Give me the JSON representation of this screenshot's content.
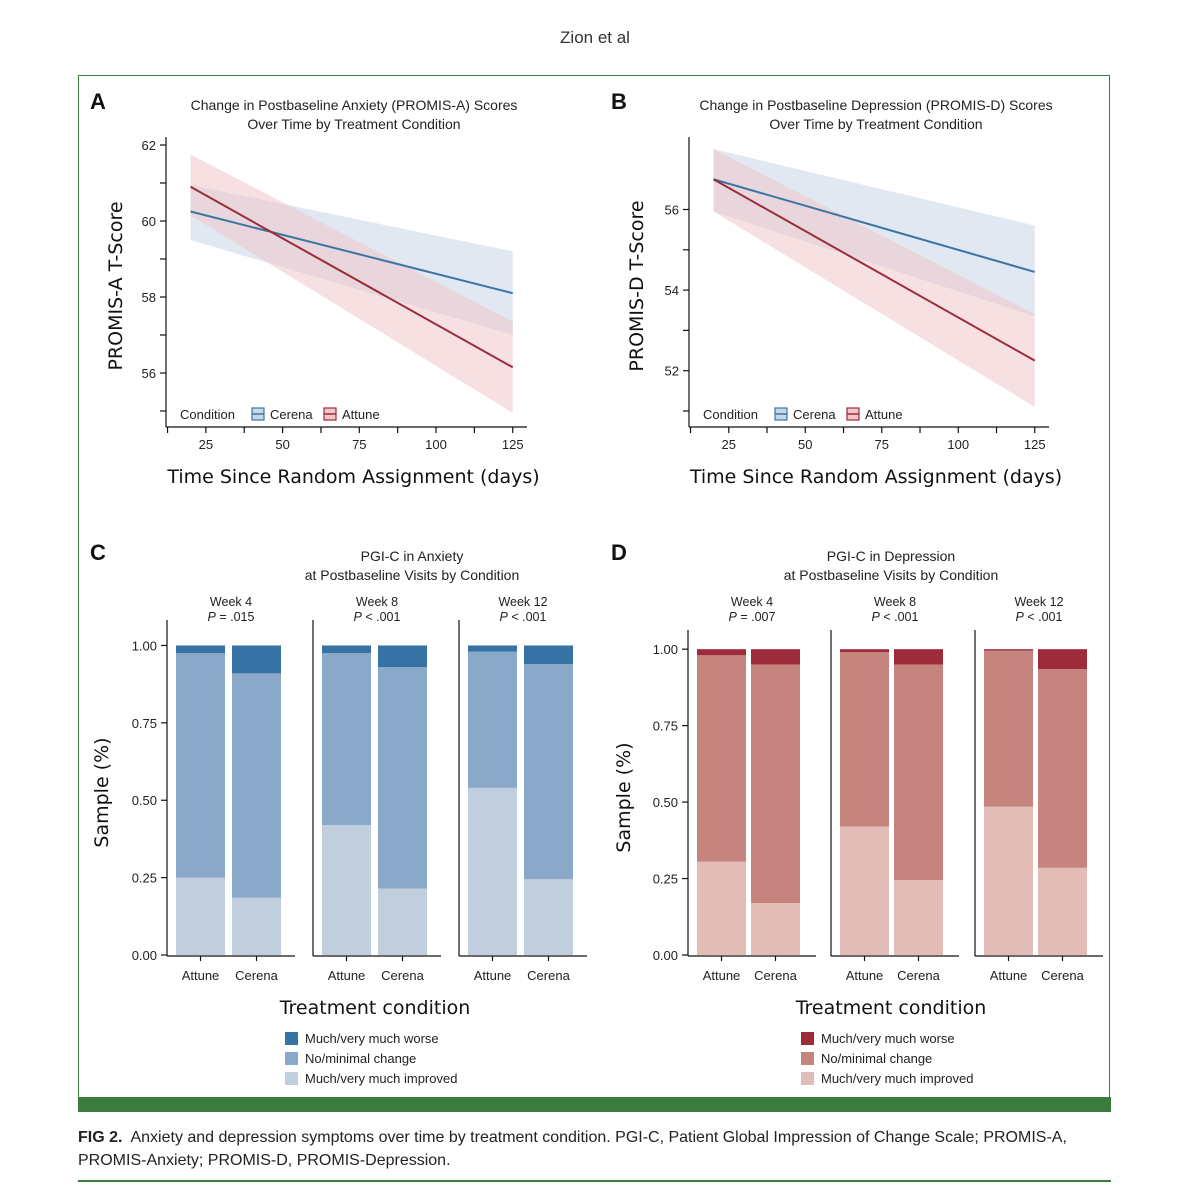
{
  "header": {
    "running_head": "Zion et al"
  },
  "caption": {
    "label": "FIG 2.",
    "text": "Anxiety and depression symptoms over time by treatment condition. PGI-C, Patient Global Impression of Change Scale; PROMIS-A, PROMIS-Anxiety; PROMIS-D, PROMIS-Depression."
  },
  "colors": {
    "cerena_line": "#3b75a6",
    "cerena_band": "#c9d6e6",
    "attune_line": "#9b2c3a",
    "attune_band": "#efc6ca",
    "blue_worse": "#3672a3",
    "blue_nochange": "#8aa8c7",
    "blue_improved": "#c1cedd",
    "red_worse": "#9e2b3a",
    "red_nochange": "#c5857e",
    "red_improved": "#e2bcb6"
  },
  "chart_data": [
    {
      "panel": "A",
      "type": "line",
      "title": [
        "Change in Postbaseline Anxiety (PROMIS-A) Scores",
        "Over Time by Treatment Condition"
      ],
      "xlabel": "Time Since Random Assignment (days)",
      "ylabel": "PROMIS-A T-Score",
      "xlim": [
        12,
        129
      ],
      "ylim": [
        55,
        62
      ],
      "xticks": [
        25,
        50,
        75,
        100,
        125
      ],
      "yticks": [
        56,
        58,
        60,
        62
      ],
      "legend_title": "Condition",
      "series": [
        {
          "name": "Cerena",
          "x": [
            20,
            125
          ],
          "y": [
            60.25,
            58.1
          ],
          "ci_low": [
            59.5,
            57.0
          ],
          "ci_high": [
            60.95,
            59.2
          ]
        },
        {
          "name": "Attune",
          "x": [
            20,
            125
          ],
          "y": [
            60.9,
            56.15
          ],
          "ci_low": [
            60.15,
            54.95
          ],
          "ci_high": [
            61.75,
            57.35
          ]
        }
      ]
    },
    {
      "panel": "B",
      "type": "line",
      "title": [
        "Change in Postbaseline Depression (PROMIS-D) Scores",
        "Over Time by Treatment Condition"
      ],
      "xlabel": "Time Since Random Assignment (days)",
      "ylabel": "PROMIS-D T-Score",
      "xlim": [
        12,
        129
      ],
      "ylim": [
        51,
        57.6
      ],
      "xticks": [
        25,
        50,
        75,
        100,
        125
      ],
      "yticks": [
        52,
        54,
        56
      ],
      "legend_title": "Condition",
      "series": [
        {
          "name": "Cerena",
          "x": [
            20,
            125
          ],
          "y": [
            56.75,
            54.45
          ],
          "ci_low": [
            55.95,
            53.35
          ],
          "ci_high": [
            57.5,
            55.6
          ]
        },
        {
          "name": "Attune",
          "x": [
            20,
            125
          ],
          "y": [
            56.75,
            52.25
          ],
          "ci_low": [
            55.95,
            51.1
          ],
          "ci_high": [
            57.5,
            53.4
          ]
        }
      ]
    },
    {
      "panel": "C",
      "type": "bar",
      "stacked": true,
      "title": [
        "PGI-C in Anxiety",
        "at Postbaseline Visits by Condition"
      ],
      "xlabel": "Treatment condition",
      "ylabel": "Sample (%)",
      "ylim": [
        0,
        1.05
      ],
      "yticks": [
        "0.00",
        "0.25",
        "0.50",
        "0.75",
        "1.00"
      ],
      "categories": [
        "Attune",
        "Cerena"
      ],
      "facets": [
        {
          "label": "Week 4",
          "p_prefix": "P",
          "p_value": " = .015",
          "improved": [
            0.25,
            0.185
          ],
          "no_change": [
            0.725,
            0.725
          ],
          "worse": [
            0.025,
            0.09
          ]
        },
        {
          "label": "Week 8",
          "p_prefix": "P",
          "p_value": " < .001",
          "improved": [
            0.42,
            0.215
          ],
          "no_change": [
            0.555,
            0.715
          ],
          "worse": [
            0.025,
            0.07
          ]
        },
        {
          "label": "Week 12",
          "p_prefix": "P",
          "p_value": " < .001",
          "improved": [
            0.54,
            0.245
          ],
          "no_change": [
            0.44,
            0.695
          ],
          "worse": [
            0.02,
            0.06
          ]
        }
      ],
      "legend": [
        "Much/very much worse",
        "No/minimal change",
        "Much/very much improved"
      ]
    },
    {
      "panel": "D",
      "type": "bar",
      "stacked": true,
      "title": [
        "PGI-C in Depression",
        "at Postbaseline Visits by Condition"
      ],
      "xlabel": "Treatment condition",
      "ylabel": "Sample (%)",
      "ylim": [
        0,
        1.03
      ],
      "yticks": [
        "0.00",
        "0.25",
        "0.50",
        "0.75",
        "1.00"
      ],
      "categories": [
        "Attune",
        "Cerena"
      ],
      "facets": [
        {
          "label": "Week 4",
          "p_prefix": "P",
          "p_value": " = .007",
          "improved": [
            0.305,
            0.17
          ],
          "no_change": [
            0.675,
            0.78
          ],
          "worse": [
            0.02,
            0.05
          ]
        },
        {
          "label": "Week 8",
          "p_prefix": "P",
          "p_value": " < .001",
          "improved": [
            0.42,
            0.245
          ],
          "no_change": [
            0.57,
            0.705
          ],
          "worse": [
            0.01,
            0.05
          ]
        },
        {
          "label": "Week 12",
          "p_prefix": "P",
          "p_value": " < .001",
          "improved": [
            0.485,
            0.285
          ],
          "no_change": [
            0.51,
            0.65
          ],
          "worse": [
            0.005,
            0.065
          ]
        }
      ],
      "legend": [
        "Much/very much worse",
        "No/minimal change",
        "Much/very much improved"
      ]
    }
  ]
}
